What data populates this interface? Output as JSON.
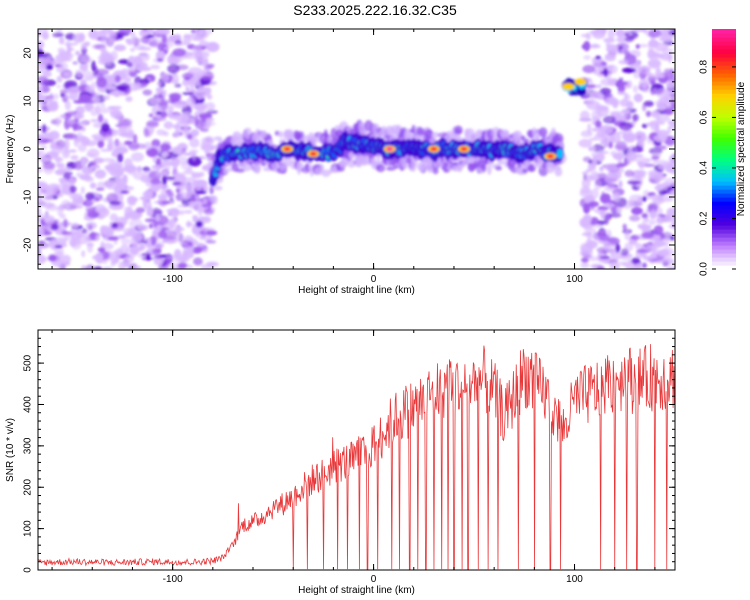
{
  "title": "S233.2025.222.16.32.C35",
  "chart_data": [
    {
      "type": "heatmap",
      "xlabel": "Height of straight line (km)",
      "ylabel": "Frequency (Hz)",
      "xlim": [
        -167,
        150
      ],
      "ylim": [
        -25,
        25
      ],
      "xticks": [
        -100,
        0,
        100
      ],
      "yticks": [
        -20,
        -10,
        0,
        10,
        20
      ],
      "colorbar": {
        "label": "Normalized spectral amplitude",
        "range": [
          0.0,
          0.95
        ],
        "ticks": [
          "0.0",
          "0.2",
          "0.4",
          "0.6",
          "0.8"
        ],
        "tick_values": [
          0.0,
          0.2,
          0.4,
          0.6,
          0.8
        ],
        "colors": [
          "#ffffff",
          "#c080ff",
          "#5000e0",
          "#0000ff",
          "#00c0ff",
          "#00ff80",
          "#40ff00",
          "#c0ff00",
          "#ffd000",
          "#ff6000",
          "#ff0040",
          "#ff20a0"
        ]
      },
      "ridge": {
        "x": [
          -80,
          -77,
          -72,
          -65,
          -58,
          -50,
          -42,
          -35,
          -28,
          -20,
          -14,
          -10,
          -5,
          0,
          5,
          10,
          15,
          20,
          25,
          30,
          35,
          40,
          45,
          50,
          55,
          60,
          65,
          70,
          75,
          80,
          85,
          90,
          93
        ],
        "y": [
          -7,
          -2,
          -1,
          -1,
          -0.5,
          -1,
          0,
          -0.5,
          -1,
          -1,
          1.5,
          1,
          1,
          0.5,
          0,
          0,
          0,
          0,
          0,
          -0.5,
          0,
          0,
          0,
          0,
          0,
          -0.5,
          0,
          -0.5,
          -1,
          0,
          -0.5,
          -1,
          -1.5
        ]
      },
      "hot_spots": [
        {
          "x": -43,
          "y": 0,
          "value": 0.85
        },
        {
          "x": -30,
          "y": -1,
          "value": 0.85
        },
        {
          "x": 8,
          "y": 0,
          "value": 0.95
        },
        {
          "x": 30,
          "y": 0,
          "value": 0.9
        },
        {
          "x": 45,
          "y": 0,
          "value": 0.85
        },
        {
          "x": 88,
          "y": -1.5,
          "value": 0.9
        },
        {
          "x": 97,
          "y": 13,
          "value": 0.65
        },
        {
          "x": 103,
          "y": 14,
          "value": 0.7
        }
      ],
      "noise_regions": [
        {
          "x_range": [
            -167,
            -80
          ],
          "y_range": [
            -25,
            25
          ]
        },
        {
          "x_range": [
            105,
            150
          ],
          "y_range": [
            -25,
            25
          ]
        }
      ],
      "secondary_feature": {
        "x_range": [
          95,
          105
        ],
        "y": 13
      }
    },
    {
      "type": "line",
      "xlabel": "Height of straight line (km)",
      "ylabel": "SNR (10 * v/v)",
      "xlim": [
        -167,
        150
      ],
      "ylim": [
        0,
        580
      ],
      "xticks": [
        -100,
        0,
        100
      ],
      "yticks": [
        0,
        100,
        200,
        300,
        400,
        500
      ],
      "color": "#e8383a",
      "x": [
        -167,
        -150,
        -130,
        -110,
        -90,
        -80,
        -75,
        -70,
        -65,
        -60,
        -55,
        -50,
        -45,
        -40,
        -35,
        -30,
        -25,
        -20,
        -15,
        -10,
        -5,
        0,
        5,
        10,
        15,
        20,
        25,
        30,
        35,
        40,
        45,
        50,
        55,
        60,
        65,
        70,
        75,
        80,
        85,
        90,
        95,
        100,
        105,
        110,
        115,
        120,
        125,
        130,
        135,
        140,
        145,
        150
      ],
      "y": [
        18,
        20,
        18,
        20,
        19,
        22,
        30,
        60,
        110,
        115,
        130,
        150,
        160,
        180,
        200,
        220,
        230,
        250,
        260,
        265,
        285,
        300,
        330,
        365,
        380,
        395,
        410,
        430,
        445,
        455,
        440,
        450,
        460,
        430,
        370,
        420,
        480,
        450,
        430,
        380,
        340,
        410,
        420,
        430,
        450,
        460,
        470,
        455,
        460,
        470,
        465,
        470
      ],
      "dropouts": [
        -40,
        -33,
        -25,
        -18,
        -13,
        -7,
        -3,
        2,
        9,
        13,
        18,
        22,
        26,
        30,
        34,
        37,
        40,
        44,
        47,
        52,
        57,
        62,
        72,
        80,
        88,
        93,
        113,
        120,
        126,
        131,
        140,
        146
      ]
    }
  ]
}
